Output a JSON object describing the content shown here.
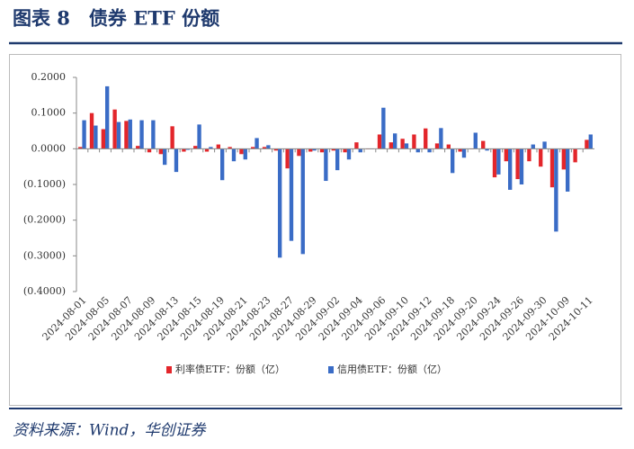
{
  "title": "图表 8　债券 ETF 份额",
  "source": "资料来源：Wind，华创证券",
  "chart_data": {
    "type": "bar",
    "categories": [
      "2024-08-01",
      null,
      "2024-08-05",
      null,
      "2024-08-07",
      null,
      "2024-08-09",
      null,
      "2024-08-13",
      null,
      "2024-08-15",
      null,
      "2024-08-19",
      null,
      "2024-08-21",
      null,
      "2024-08-23",
      null,
      "2024-08-27",
      null,
      "2024-08-29",
      null,
      "2024-09-02",
      null,
      "2024-09-04",
      null,
      "2024-09-06",
      null,
      "2024-09-10",
      null,
      "2024-09-12",
      null,
      "2024-09-18",
      null,
      "2024-09-20",
      null,
      "2024-09-24",
      null,
      "2024-09-26",
      null,
      "2024-09-30",
      null,
      "2024-10-09",
      null,
      "2024-10-11"
    ],
    "series": [
      {
        "name": "利率债ETF：份额（亿）",
        "color": "#e3262b",
        "values": [
          0.005,
          0.1,
          0.055,
          0.11,
          0.078,
          0.008,
          -0.01,
          -0.015,
          0.063,
          -0.008,
          0.008,
          -0.008,
          0.012,
          0.005,
          -0.015,
          0.005,
          0.005,
          -0.005,
          -0.055,
          -0.02,
          -0.008,
          -0.01,
          -0.005,
          -0.01,
          0.018,
          0,
          0.04,
          0.018,
          0.028,
          0.04,
          0.057,
          0.015,
          0.012,
          -0.008,
          0,
          0.022,
          -0.08,
          -0.035,
          -0.085,
          -0.035,
          -0.05,
          -0.108,
          -0.058,
          -0.038,
          0.025
        ]
      },
      {
        "name": "信用债ETF：份额（亿）",
        "color": "#3a6cc6",
        "values": [
          0.08,
          0.065,
          0.175,
          0.075,
          0.082,
          0.08,
          0.08,
          -0.045,
          -0.065,
          -0.003,
          0.068,
          0.005,
          -0.088,
          -0.035,
          -0.03,
          0.03,
          0.01,
          -0.305,
          -0.258,
          -0.295,
          -0.005,
          -0.09,
          -0.06,
          -0.03,
          -0.01,
          0,
          0.115,
          0.043,
          0.015,
          -0.01,
          -0.01,
          0.058,
          -0.068,
          -0.025,
          0.045,
          -0.005,
          -0.072,
          -0.115,
          -0.1,
          0.012,
          0.02,
          -0.232,
          -0.12,
          0,
          0.04
        ]
      }
    ],
    "ylim": [
      -0.4,
      0.2
    ],
    "yticks": [
      {
        "value": -0.4,
        "label": "(0.4000)"
      },
      {
        "value": -0.3,
        "label": "(0.3000)"
      },
      {
        "value": -0.2,
        "label": "(0.2000)"
      },
      {
        "value": -0.1,
        "label": "(0.1000)"
      },
      {
        "value": 0,
        "label": "0.0000"
      },
      {
        "value": 0.1,
        "label": "0.1000"
      },
      {
        "value": 0.2,
        "label": "0.2000"
      }
    ],
    "legend": "bottom"
  }
}
